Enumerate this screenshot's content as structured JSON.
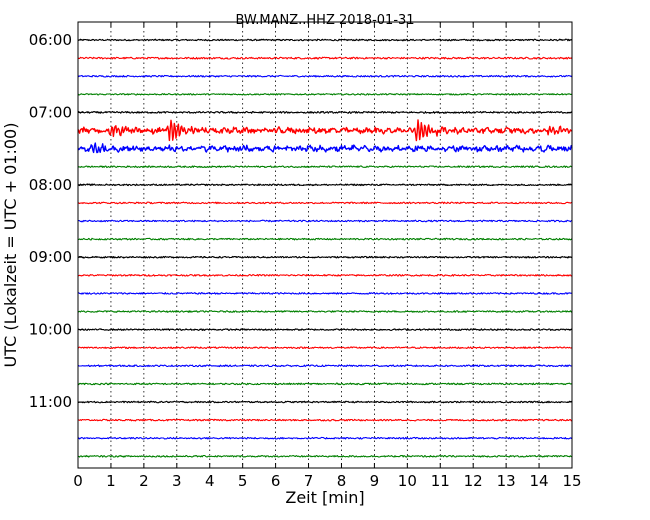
{
  "chart_data": {
    "type": "line",
    "title": "BW.MANZ..HHZ 2018-01-31",
    "xlabel": "Zeit  [min]",
    "ylabel": "UTC (Lokalzeit = UTC + 01:00)",
    "xlim": [
      0,
      15
    ],
    "x_ticks": [
      "0",
      "1",
      "2",
      "3",
      "4",
      "5",
      "6",
      "7",
      "8",
      "9",
      "10",
      "11",
      "12",
      "13",
      "14",
      "15"
    ],
    "y_tick_labels": [
      "06:00",
      "07:00",
      "08:00",
      "09:00",
      "10:00",
      "11:00"
    ],
    "grid": true,
    "trace_colors": [
      "#000000",
      "#ff0000",
      "#0000ff",
      "#008000"
    ],
    "traces": [
      {
        "start": "06:00",
        "amplitude": 0.35
      },
      {
        "start": "06:15",
        "amplitude": 0.4
      },
      {
        "start": "06:30",
        "amplitude": 0.35
      },
      {
        "start": "06:45",
        "amplitude": 0.3
      },
      {
        "start": "07:00",
        "amplitude": 0.4
      },
      {
        "start": "07:15",
        "amplitude": 1.0,
        "events": [
          {
            "minute": 1.0,
            "amp": 3.5
          },
          {
            "minute": 2.8,
            "amp": 6.0
          },
          {
            "minute": 10.3,
            "amp": 5.5
          },
          {
            "minute": 14.3,
            "amp": 2.0
          }
        ],
        "background": 1.6
      },
      {
        "start": "07:30",
        "amplitude": 0.9,
        "background": 1.8,
        "events": [
          {
            "minute": 0.5,
            "amp": 2.5
          },
          {
            "minute": 5.0,
            "amp": 1.5
          }
        ]
      },
      {
        "start": "07:45",
        "amplitude": 0.35
      },
      {
        "start": "08:00",
        "amplitude": 0.35
      },
      {
        "start": "08:15",
        "amplitude": 0.35
      },
      {
        "start": "08:30",
        "amplitude": 0.35
      },
      {
        "start": "08:45",
        "amplitude": 0.35
      },
      {
        "start": "09:00",
        "amplitude": 0.35
      },
      {
        "start": "09:15",
        "amplitude": 0.35
      },
      {
        "start": "09:30",
        "amplitude": 0.35
      },
      {
        "start": "09:45",
        "amplitude": 0.35
      },
      {
        "start": "10:00",
        "amplitude": 0.35
      },
      {
        "start": "10:15",
        "amplitude": 0.35
      },
      {
        "start": "10:30",
        "amplitude": 0.35
      },
      {
        "start": "10:45",
        "amplitude": 0.35
      },
      {
        "start": "11:00",
        "amplitude": 0.35
      },
      {
        "start": "11:15",
        "amplitude": 0.35
      },
      {
        "start": "11:30",
        "amplitude": 0.35
      },
      {
        "start": "11:45",
        "amplitude": 0.35
      }
    ]
  }
}
